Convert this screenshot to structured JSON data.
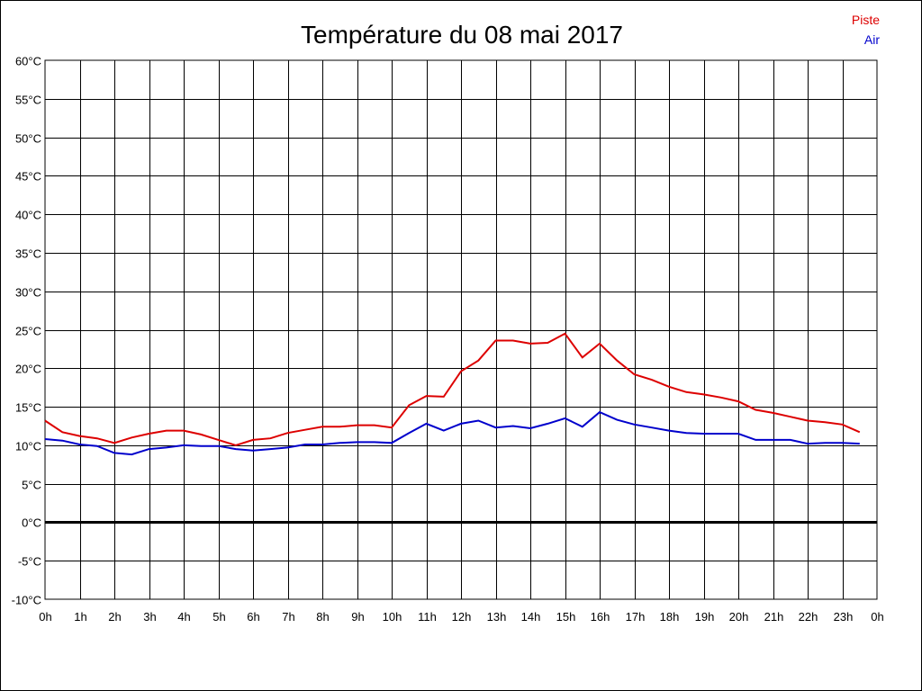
{
  "chart_data": {
    "type": "line",
    "title": "Température du 08 mai 2017",
    "xlabel": "",
    "ylabel": "",
    "x_tick_labels": [
      "0h",
      "1h",
      "2h",
      "3h",
      "4h",
      "5h",
      "6h",
      "7h",
      "8h",
      "9h",
      "10h",
      "11h",
      "12h",
      "13h",
      "14h",
      "15h",
      "16h",
      "17h",
      "18h",
      "19h",
      "20h",
      "21h",
      "22h",
      "23h",
      "0h"
    ],
    "y_tick_labels": [
      "60°C",
      "55°C",
      "50°C",
      "45°C",
      "40°C",
      "35°C",
      "30°C",
      "25°C",
      "20°C",
      "15°C",
      "10°C",
      "5°C",
      "0°C",
      "-5°C",
      "-10°C"
    ],
    "ylim": [
      -10,
      60
    ],
    "xlim": [
      0,
      24
    ],
    "grid": true,
    "legend_position": "top-right",
    "zero_line": true,
    "series": [
      {
        "name": "Piste",
        "color": "#dd0000",
        "x": [
          0,
          0.5,
          1,
          1.5,
          2,
          2.5,
          3,
          3.5,
          4,
          4.5,
          5,
          5.5,
          6,
          6.5,
          7,
          7.5,
          8,
          8.5,
          9,
          9.5,
          10,
          10.5,
          11,
          11.5,
          12,
          12.5,
          13,
          13.5,
          14,
          14.5,
          15,
          15.5,
          16,
          16.5,
          17,
          17.5,
          18,
          18.5,
          19,
          19.5,
          20,
          20.5,
          21,
          21.5,
          22,
          22.5,
          23,
          23.5
        ],
        "values": [
          13.2,
          11.7,
          11.2,
          10.9,
          10.3,
          11.0,
          11.5,
          11.9,
          11.9,
          11.4,
          10.7,
          10.0,
          10.7,
          10.9,
          11.6,
          12.0,
          12.4,
          12.4,
          12.6,
          12.6,
          12.3,
          15.2,
          16.4,
          16.3,
          19.6,
          21.0,
          23.6,
          23.6,
          23.2,
          23.3,
          24.5,
          21.4,
          23.2,
          21.0,
          19.2,
          18.5,
          17.6,
          16.9,
          16.6,
          16.2,
          15.7,
          14.6,
          14.2,
          13.7,
          13.2,
          13.0,
          12.7,
          11.7
        ]
      },
      {
        "name": "Air",
        "color": "#0000cc",
        "x": [
          0,
          0.5,
          1,
          1.5,
          2,
          2.5,
          3,
          3.5,
          4,
          4.5,
          5,
          5.5,
          6,
          6.5,
          7,
          7.5,
          8,
          8.5,
          9,
          9.5,
          10,
          10.5,
          11,
          11.5,
          12,
          12.5,
          13,
          13.5,
          14,
          14.5,
          15,
          15.5,
          16,
          16.5,
          17,
          17.5,
          18,
          18.5,
          19,
          19.5,
          20,
          20.5,
          21,
          21.5,
          22,
          22.5,
          23,
          23.5
        ],
        "values": [
          10.8,
          10.6,
          10.1,
          9.9,
          9.0,
          8.8,
          9.5,
          9.7,
          10.0,
          9.9,
          9.9,
          9.5,
          9.3,
          9.5,
          9.7,
          10.1,
          10.1,
          10.3,
          10.4,
          10.4,
          10.3,
          11.6,
          12.8,
          11.9,
          12.8,
          13.2,
          12.3,
          12.5,
          12.2,
          12.8,
          13.5,
          12.4,
          14.3,
          13.3,
          12.7,
          12.3,
          11.9,
          11.6,
          11.5,
          11.5,
          11.5,
          10.7,
          10.7,
          10.7,
          10.2,
          10.3,
          10.3,
          10.2
        ]
      }
    ]
  }
}
